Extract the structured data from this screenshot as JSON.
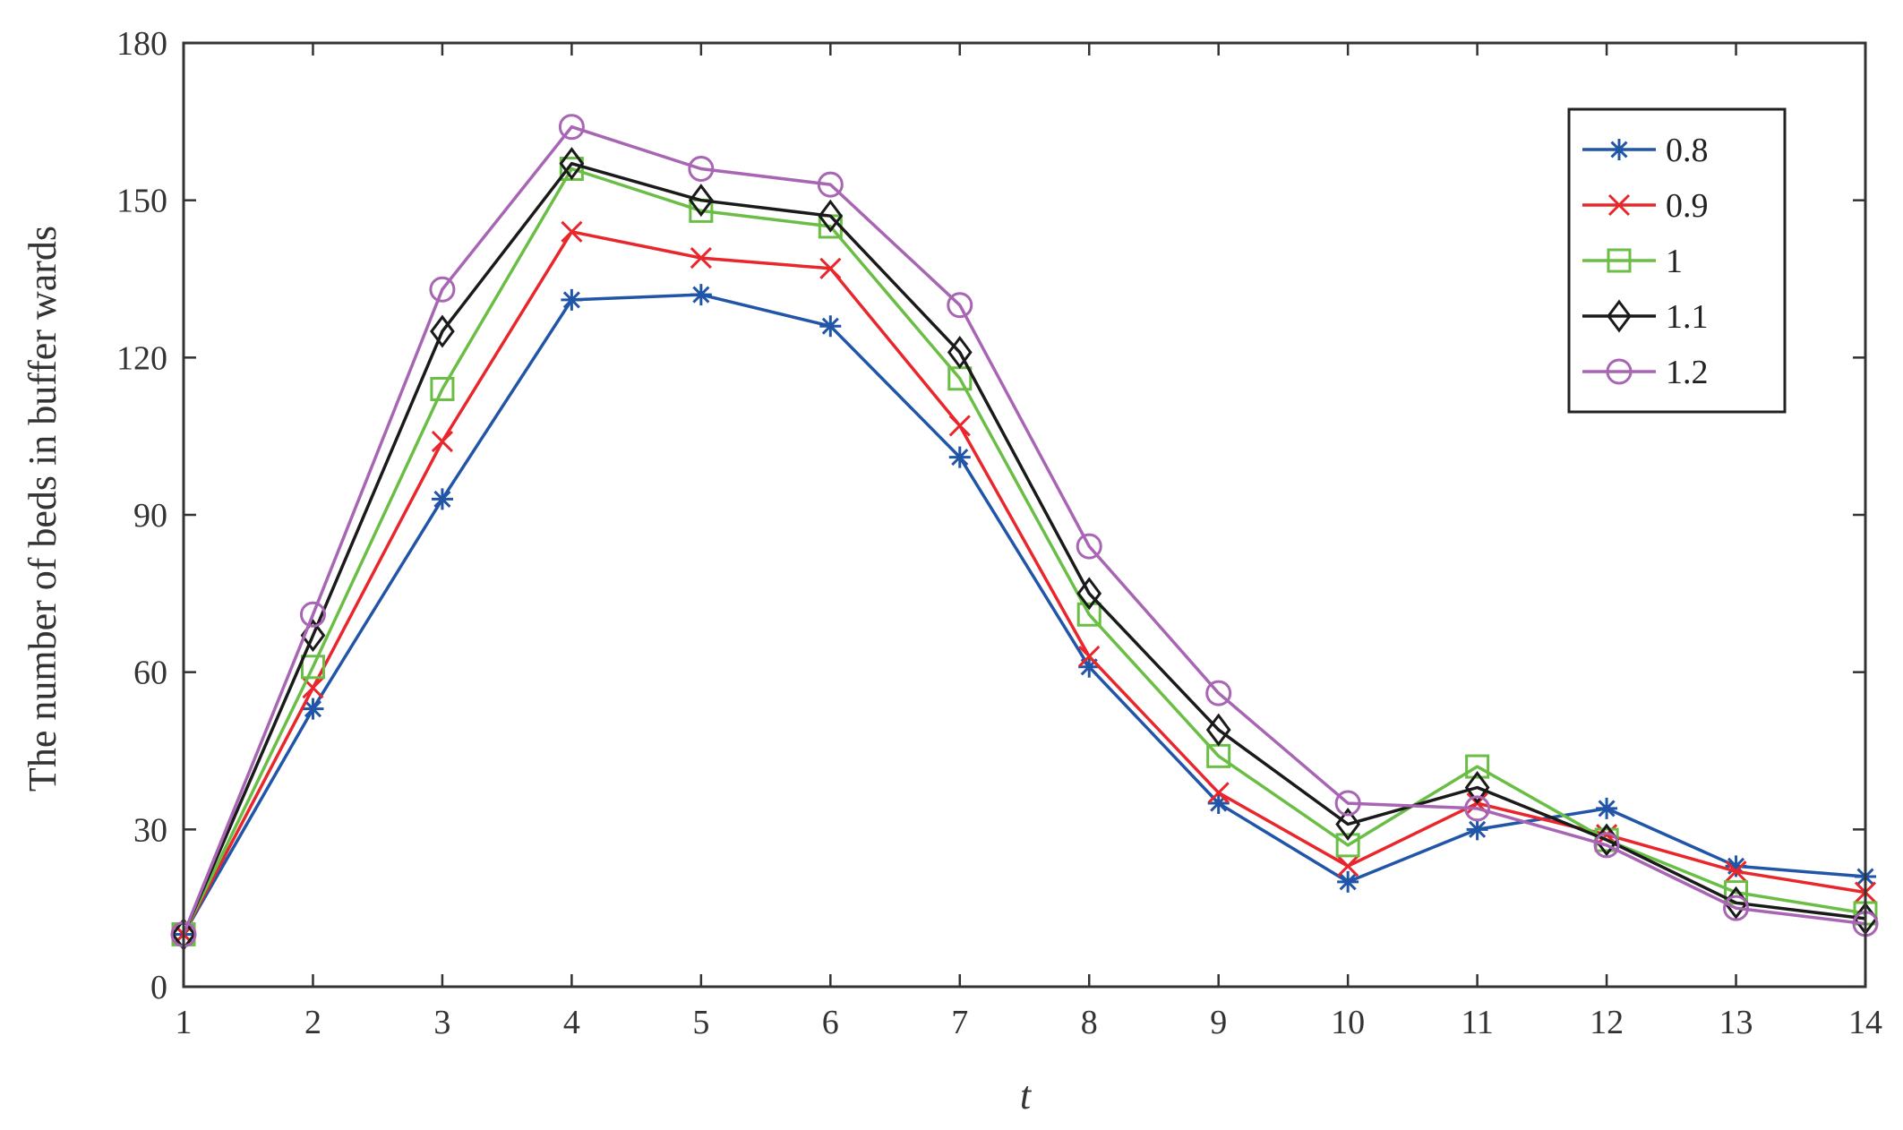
{
  "chart_data": {
    "type": "line",
    "title": "",
    "xlabel": "t",
    "ylabel": "The number of beds in buffer wards",
    "xlim": [
      1,
      14
    ],
    "ylim": [
      0,
      180
    ],
    "x": [
      1,
      2,
      3,
      4,
      5,
      6,
      7,
      8,
      9,
      10,
      11,
      12,
      13,
      14
    ],
    "x_ticks": [
      "1",
      "2",
      "3",
      "4",
      "5",
      "6",
      "7",
      "8",
      "9",
      "10",
      "11",
      "12",
      "13",
      "14"
    ],
    "y_ticks": [
      "0",
      "30",
      "60",
      "90",
      "120",
      "150",
      "180"
    ],
    "grid": false,
    "legend_position": "top-right",
    "series": [
      {
        "name": "0.8",
        "color": "#2155a8",
        "marker": "asterisk",
        "values": [
          10,
          53,
          93,
          131,
          132,
          126,
          101,
          61,
          35,
          20,
          30,
          34,
          23,
          21
        ]
      },
      {
        "name": "0.9",
        "color": "#e8262b",
        "marker": "x",
        "values": [
          10,
          57,
          104,
          144,
          139,
          137,
          107,
          63,
          37,
          23,
          35,
          29,
          22,
          18
        ]
      },
      {
        "name": "1",
        "color": "#6abe45",
        "marker": "square",
        "values": [
          10,
          61,
          114,
          156,
          148,
          145,
          116,
          71,
          44,
          27,
          42,
          28,
          18,
          14
        ]
      },
      {
        "name": "1.1",
        "color": "#1a1a1a",
        "marker": "diamond",
        "values": [
          10,
          67,
          125,
          157,
          150,
          147,
          121,
          75,
          49,
          31,
          38,
          28,
          16,
          13
        ]
      },
      {
        "name": "1.2",
        "color": "#a865b3",
        "marker": "circle",
        "values": [
          10,
          71,
          133,
          164,
          156,
          153,
          130,
          84,
          56,
          35,
          34,
          27,
          15,
          12
        ]
      }
    ]
  }
}
